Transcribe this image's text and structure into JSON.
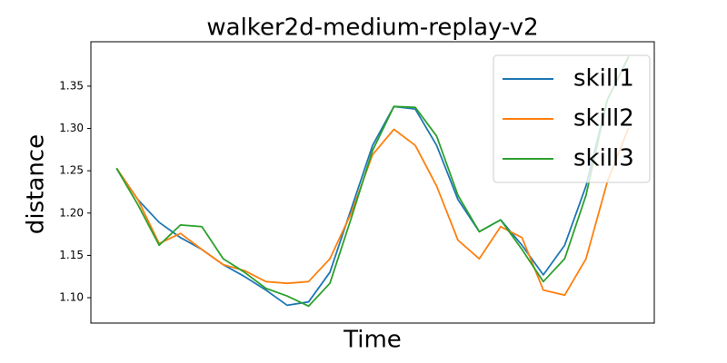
{
  "chart_data": {
    "type": "line",
    "title": "walker2d-medium-replay-v2",
    "x_label": "Time",
    "y_label": "distance",
    "x": [
      0,
      1,
      2,
      3,
      4,
      5,
      6,
      7,
      8,
      9,
      10,
      11,
      12,
      13,
      14,
      15,
      16,
      17,
      18,
      19,
      20,
      21,
      22,
      23,
      24
    ],
    "xlim": [
      -1.2,
      25.2
    ],
    "ylim": [
      1.07,
      1.4025
    ],
    "yticks": [
      {
        "value": 1.1,
        "label": "1.10"
      },
      1.15,
      {
        "value": 1.2,
        "label": "1.20"
      },
      1.25,
      {
        "value": 1.3,
        "label": "1.30"
      },
      1.35
    ],
    "legend": "upper right",
    "series": [
      {
        "name": "skill1",
        "color": "#1f77b4",
        "values": [
          1.253,
          1.216,
          1.189,
          1.171,
          1.157,
          1.139,
          1.125,
          1.109,
          1.091,
          1.095,
          1.13,
          1.205,
          1.28,
          1.326,
          1.323,
          1.28,
          1.216,
          1.178,
          1.192,
          1.162,
          1.127,
          1.162,
          1.232,
          1.334,
          1.385
        ]
      },
      {
        "name": "skill2",
        "color": "#ff7f0e",
        "values": [
          1.253,
          1.216,
          1.164,
          1.176,
          1.157,
          1.139,
          1.132,
          1.119,
          1.117,
          1.119,
          1.146,
          1.2,
          1.269,
          1.299,
          1.28,
          1.232,
          1.168,
          1.146,
          1.184,
          1.171,
          1.109,
          1.103,
          1.146,
          1.237,
          1.301
        ]
      },
      {
        "name": "skill3",
        "color": "#2ca02c",
        "values": [
          1.253,
          1.21,
          1.162,
          1.186,
          1.184,
          1.146,
          1.13,
          1.111,
          1.102,
          1.09,
          1.117,
          1.194,
          1.274,
          1.326,
          1.325,
          1.291,
          1.221,
          1.178,
          1.192,
          1.157,
          1.119,
          1.146,
          1.221,
          1.334,
          1.385
        ]
      }
    ]
  }
}
